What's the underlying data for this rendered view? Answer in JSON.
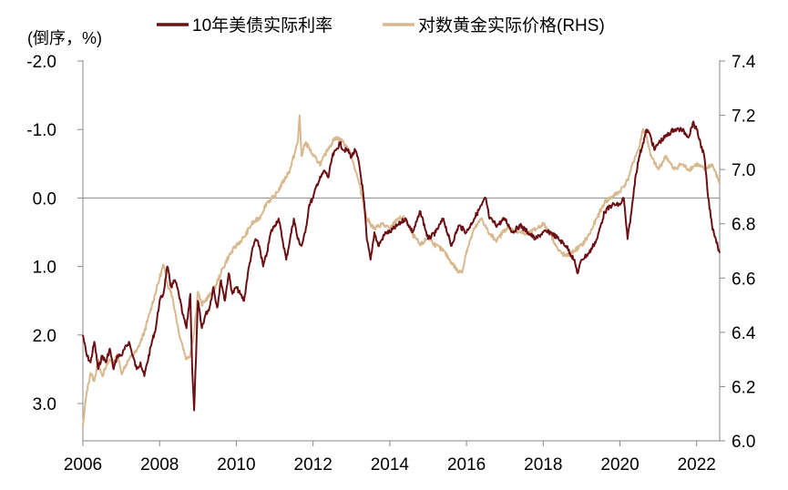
{
  "chart_data": {
    "type": "line",
    "title": "",
    "y_left_label": "(倒序，%)",
    "y_left_inverted": true,
    "y_left_range": [
      -2.0,
      3.5
    ],
    "y_left_ticks": [
      "-2.0",
      "-1.0",
      "0.0",
      "1.0",
      "2.0",
      "3.0"
    ],
    "y_right_label": "",
    "y_right_range": [
      6.0,
      7.4
    ],
    "y_right_ticks": [
      "7.4",
      "7.2",
      "7.0",
      "6.8",
      "6.6",
      "6.4",
      "6.2",
      "6.0"
    ],
    "x_range": [
      2006.0,
      2022.6
    ],
    "x_ticks": [
      "2006",
      "2008",
      "2010",
      "2012",
      "2014",
      "2016",
      "2018",
      "2020",
      "2022"
    ],
    "zero_line": 0.0,
    "legend_position": "top",
    "series": [
      {
        "name": "10年美债实际利率",
        "axis": "left",
        "color": "#6b0f14",
        "x": [
          2006.0,
          2006.1,
          2006.2,
          2006.3,
          2006.4,
          2006.5,
          2006.6,
          2006.7,
          2006.8,
          2006.9,
          2007.0,
          2007.2,
          2007.4,
          2007.5,
          2007.6,
          2007.8,
          2007.9,
          2008.0,
          2008.1,
          2008.2,
          2008.3,
          2008.4,
          2008.5,
          2008.6,
          2008.7,
          2008.8,
          2008.85,
          2008.9,
          2009.0,
          2009.1,
          2009.2,
          2009.3,
          2009.4,
          2009.5,
          2009.6,
          2009.7,
          2009.8,
          2009.9,
          2010.0,
          2010.1,
          2010.2,
          2010.3,
          2010.4,
          2010.5,
          2010.6,
          2010.7,
          2010.8,
          2010.9,
          2011.0,
          2011.1,
          2011.2,
          2011.3,
          2011.4,
          2011.5,
          2011.6,
          2011.7,
          2011.8,
          2011.9,
          2012.0,
          2012.1,
          2012.2,
          2012.3,
          2012.4,
          2012.5,
          2012.6,
          2012.7,
          2012.8,
          2012.9,
          2013.0,
          2013.1,
          2013.2,
          2013.3,
          2013.35,
          2013.4,
          2013.5,
          2013.6,
          2013.7,
          2013.8,
          2013.9,
          2014.0,
          2014.2,
          2014.4,
          2014.6,
          2014.8,
          2015.0,
          2015.2,
          2015.4,
          2015.6,
          2015.8,
          2016.0,
          2016.2,
          2016.4,
          2016.5,
          2016.6,
          2016.8,
          2017.0,
          2017.2,
          2017.4,
          2017.6,
          2017.8,
          2018.0,
          2018.2,
          2018.4,
          2018.6,
          2018.8,
          2018.9,
          2019.0,
          2019.2,
          2019.4,
          2019.6,
          2019.8,
          2020.0,
          2020.1,
          2020.15,
          2020.2,
          2020.3,
          2020.4,
          2020.5,
          2020.6,
          2020.7,
          2020.8,
          2020.9,
          2021.0,
          2021.2,
          2021.4,
          2021.6,
          2021.8,
          2021.9,
          2022.0,
          2022.1,
          2022.2,
          2022.3,
          2022.4,
          2022.5,
          2022.6
        ],
        "values": [
          2.0,
          2.3,
          2.4,
          2.1,
          2.5,
          2.3,
          2.4,
          2.2,
          2.5,
          2.3,
          2.3,
          2.1,
          2.5,
          2.4,
          2.6,
          2.1,
          1.9,
          1.5,
          1.4,
          1.0,
          1.3,
          1.2,
          1.4,
          1.7,
          1.9,
          1.4,
          2.5,
          3.1,
          1.5,
          1.9,
          1.7,
          1.6,
          1.3,
          1.6,
          1.2,
          1.5,
          1.1,
          1.4,
          1.3,
          1.4,
          1.5,
          1.1,
          0.8,
          0.6,
          0.7,
          1.0,
          0.8,
          0.5,
          0.4,
          0.3,
          0.6,
          0.9,
          0.6,
          0.3,
          0.6,
          0.7,
          0.5,
          0.1,
          0.0,
          -0.2,
          -0.3,
          -0.4,
          -0.3,
          -0.6,
          -0.7,
          -0.8,
          -0.7,
          -0.7,
          -0.6,
          -0.7,
          -0.5,
          -0.1,
          0.2,
          0.6,
          0.9,
          0.5,
          0.7,
          0.6,
          0.5,
          0.5,
          0.4,
          0.3,
          0.5,
          0.2,
          0.6,
          0.5,
          0.3,
          0.7,
          0.4,
          0.5,
          0.3,
          0.1,
          0.0,
          0.3,
          0.4,
          0.3,
          0.5,
          0.4,
          0.5,
          0.6,
          0.5,
          0.5,
          0.6,
          0.7,
          0.9,
          1.1,
          0.9,
          0.8,
          0.6,
          0.2,
          0.1,
          0.1,
          0.0,
          0.3,
          0.6,
          0.2,
          -0.3,
          -0.6,
          -0.8,
          -1.0,
          -0.9,
          -0.7,
          -0.8,
          -0.9,
          -1.0,
          -1.0,
          -0.9,
          -1.1,
          -1.0,
          -0.8,
          -0.6,
          0.0,
          0.4,
          0.6,
          0.8
        ]
      },
      {
        "name": "对数黄金实际价格(RHS)",
        "axis": "right",
        "color": "#d8b88e",
        "x": [
          2006.0,
          2006.05,
          2006.1,
          2006.2,
          2006.3,
          2006.4,
          2006.5,
          2006.6,
          2006.7,
          2006.8,
          2006.9,
          2007.0,
          2007.2,
          2007.4,
          2007.6,
          2007.8,
          2008.0,
          2008.1,
          2008.2,
          2008.3,
          2008.4,
          2008.5,
          2008.6,
          2008.7,
          2008.8,
          2008.9,
          2009.0,
          2009.1,
          2009.2,
          2009.4,
          2009.6,
          2009.8,
          2010.0,
          2010.2,
          2010.4,
          2010.6,
          2010.8,
          2011.0,
          2011.2,
          2011.4,
          2011.6,
          2011.65,
          2011.7,
          2011.8,
          2011.9,
          2012.0,
          2012.2,
          2012.4,
          2012.6,
          2012.8,
          2013.0,
          2013.2,
          2013.4,
          2013.6,
          2013.8,
          2014.0,
          2014.2,
          2014.4,
          2014.6,
          2014.8,
          2015.0,
          2015.2,
          2015.4,
          2015.6,
          2015.8,
          2015.9,
          2016.0,
          2016.2,
          2016.4,
          2016.6,
          2016.8,
          2017.0,
          2017.2,
          2017.4,
          2017.6,
          2017.8,
          2018.0,
          2018.2,
          2018.4,
          2018.6,
          2018.8,
          2019.0,
          2019.2,
          2019.4,
          2019.6,
          2019.8,
          2020.0,
          2020.2,
          2020.4,
          2020.5,
          2020.6,
          2020.7,
          2020.8,
          2021.0,
          2021.2,
          2021.4,
          2021.6,
          2021.8,
          2022.0,
          2022.2,
          2022.4,
          2022.6
        ],
        "values": [
          6.05,
          6.12,
          6.18,
          6.25,
          6.22,
          6.3,
          6.24,
          6.27,
          6.3,
          6.28,
          6.32,
          6.25,
          6.3,
          6.33,
          6.4,
          6.5,
          6.6,
          6.65,
          6.58,
          6.55,
          6.48,
          6.4,
          6.35,
          6.3,
          6.32,
          6.4,
          6.55,
          6.5,
          6.52,
          6.55,
          6.62,
          6.68,
          6.72,
          6.75,
          6.8,
          6.82,
          6.88,
          6.9,
          6.95,
          7.0,
          7.1,
          7.2,
          7.05,
          7.1,
          7.08,
          7.05,
          7.02,
          7.08,
          7.12,
          7.1,
          7.05,
          6.95,
          6.82,
          6.78,
          6.8,
          6.78,
          6.82,
          6.82,
          6.76,
          6.72,
          6.75,
          6.72,
          6.7,
          6.66,
          6.62,
          6.63,
          6.7,
          6.78,
          6.82,
          6.76,
          6.74,
          6.78,
          6.78,
          6.77,
          6.76,
          6.78,
          6.8,
          6.76,
          6.7,
          6.68,
          6.7,
          6.72,
          6.76,
          6.82,
          6.88,
          6.9,
          6.92,
          6.96,
          7.05,
          7.08,
          7.15,
          7.12,
          7.05,
          7.0,
          7.05,
          7.0,
          7.02,
          7.0,
          7.02,
          7.0,
          7.02,
          6.95
        ]
      }
    ]
  }
}
